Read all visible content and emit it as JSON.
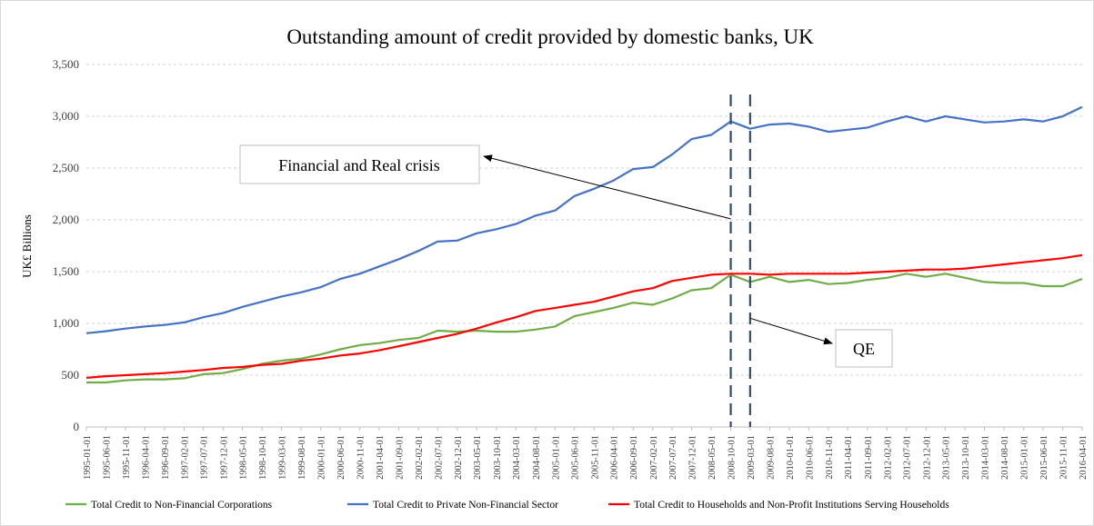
{
  "chart_data": {
    "type": "line",
    "title": "Outstanding amount of credit provided by domestic banks, UK",
    "ylabel": "UK£ Billions",
    "xlabel": "",
    "ylim": [
      0,
      3500
    ],
    "yticks": [
      0,
      500,
      1000,
      1500,
      2000,
      2500,
      3000,
      3500
    ],
    "ytick_labels": [
      "0",
      "500",
      "1,000",
      "1,500",
      "2,000",
      "2,500",
      "3,000",
      "3,500"
    ],
    "grid": "horizontal dashed",
    "legend_position": "bottom",
    "x_tick_labels": [
      "1995-01-01",
      "1995-06-01",
      "1995-11-01",
      "1996-04-01",
      "1996-09-01",
      "1997-02-01",
      "1997-07-01",
      "1997-12-01",
      "1998-05-01",
      "1998-10-01",
      "1999-03-01",
      "1999-08-01",
      "2000-01-01",
      "2000-06-01",
      "2000-11-01",
      "2001-04-01",
      "2001-09-01",
      "2002-02-01",
      "2002-07-01",
      "2002-12-01",
      "2003-05-01",
      "2003-10-01",
      "2004-03-01",
      "2004-08-01",
      "2005-01-01",
      "2005-06-01",
      "2005-11-01",
      "2006-04-01",
      "2006-09-01",
      "2007-02-01",
      "2007-07-01",
      "2007-12-01",
      "2008-05-01",
      "2008-10-01",
      "2009-03-01",
      "2009-08-01",
      "2010-01-01",
      "2010-06-01",
      "2010-11-01",
      "2011-04-01",
      "2011-09-01",
      "2012-02-01",
      "2012-07-01",
      "2012-12-01",
      "2013-05-01",
      "2013-10-01",
      "2014-03-01",
      "2014-08-01",
      "2015-01-01",
      "2015-06-01",
      "2015-11-01",
      "2016-04-01"
    ],
    "x_start": "1995-01-01",
    "x_end": "2016-04-01",
    "series": [
      {
        "name": "Total Credit to Non-Financial Corporations",
        "color": "#70ad47",
        "x": [
          "1995-01-01",
          "1995-06-01",
          "1995-11-01",
          "1996-04-01",
          "1996-09-01",
          "1997-02-01",
          "1997-07-01",
          "1997-12-01",
          "1998-05-01",
          "1998-10-01",
          "1999-03-01",
          "1999-08-01",
          "2000-01-01",
          "2000-06-01",
          "2000-11-01",
          "2001-04-01",
          "2001-09-01",
          "2002-02-01",
          "2002-07-01",
          "2002-12-01",
          "2003-05-01",
          "2003-10-01",
          "2004-03-01",
          "2004-08-01",
          "2005-01-01",
          "2005-06-01",
          "2005-11-01",
          "2006-04-01",
          "2006-09-01",
          "2007-02-01",
          "2007-07-01",
          "2007-12-01",
          "2008-05-01",
          "2008-10-01",
          "2009-03-01",
          "2009-08-01",
          "2010-01-01",
          "2010-06-01",
          "2010-11-01",
          "2011-04-01",
          "2011-09-01",
          "2012-02-01",
          "2012-07-01",
          "2012-12-01",
          "2013-05-01",
          "2013-10-01",
          "2014-03-01",
          "2014-08-01",
          "2015-01-01",
          "2015-06-01",
          "2015-11-01",
          "2016-04-01"
        ],
        "values": [
          430,
          430,
          450,
          460,
          460,
          470,
          510,
          520,
          560,
          610,
          640,
          660,
          700,
          750,
          790,
          810,
          840,
          860,
          930,
          920,
          930,
          920,
          920,
          940,
          970,
          1070,
          1110,
          1150,
          1200,
          1180,
          1240,
          1320,
          1340,
          1470,
          1400,
          1450,
          1400,
          1420,
          1380,
          1390,
          1420,
          1440,
          1480,
          1450,
          1480,
          1440,
          1400,
          1390,
          1390,
          1360,
          1360,
          1430
        ]
      },
      {
        "name": "Total Credit to Private Non-Financial Sector",
        "color": "#4472c4",
        "x": [
          "1995-01-01",
          "1995-06-01",
          "1995-11-01",
          "1996-04-01",
          "1996-09-01",
          "1997-02-01",
          "1997-07-01",
          "1997-12-01",
          "1998-05-01",
          "1998-10-01",
          "1999-03-01",
          "1999-08-01",
          "2000-01-01",
          "2000-06-01",
          "2000-11-01",
          "2001-04-01",
          "2001-09-01",
          "2002-02-01",
          "2002-07-01",
          "2002-12-01",
          "2003-05-01",
          "2003-10-01",
          "2004-03-01",
          "2004-08-01",
          "2005-01-01",
          "2005-06-01",
          "2005-11-01",
          "2006-04-01",
          "2006-09-01",
          "2007-02-01",
          "2007-07-01",
          "2007-12-01",
          "2008-05-01",
          "2008-10-01",
          "2009-03-01",
          "2009-08-01",
          "2010-01-01",
          "2010-06-01",
          "2010-11-01",
          "2011-04-01",
          "2011-09-01",
          "2012-02-01",
          "2012-07-01",
          "2012-12-01",
          "2013-05-01",
          "2013-10-01",
          "2014-03-01",
          "2014-08-01",
          "2015-01-01",
          "2015-06-01",
          "2015-11-01",
          "2016-04-01"
        ],
        "values": [
          905,
          925,
          950,
          970,
          985,
          1010,
          1060,
          1100,
          1160,
          1210,
          1260,
          1300,
          1350,
          1430,
          1480,
          1550,
          1620,
          1700,
          1790,
          1800,
          1870,
          1910,
          1960,
          2040,
          2090,
          2230,
          2300,
          2380,
          2490,
          2510,
          2630,
          2780,
          2820,
          2950,
          2880,
          2920,
          2930,
          2900,
          2850,
          2870,
          2890,
          2950,
          3000,
          2950,
          3000,
          2970,
          2940,
          2950,
          2970,
          2950,
          3000,
          3090
        ]
      },
      {
        "name": "Total Credit to Households and Non-Profit Institutions Serving Households",
        "color": "#ff0000",
        "x": [
          "1995-01-01",
          "1995-06-01",
          "1995-11-01",
          "1996-04-01",
          "1996-09-01",
          "1997-02-01",
          "1997-07-01",
          "1997-12-01",
          "1998-05-01",
          "1998-10-01",
          "1999-03-01",
          "1999-08-01",
          "2000-01-01",
          "2000-06-01",
          "2000-11-01",
          "2001-04-01",
          "2001-09-01",
          "2002-02-01",
          "2002-07-01",
          "2002-12-01",
          "2003-05-01",
          "2003-10-01",
          "2004-03-01",
          "2004-08-01",
          "2005-01-01",
          "2005-06-01",
          "2005-11-01",
          "2006-04-01",
          "2006-09-01",
          "2007-02-01",
          "2007-07-01",
          "2007-12-01",
          "2008-05-01",
          "2008-10-01",
          "2009-03-01",
          "2009-08-01",
          "2010-01-01",
          "2010-06-01",
          "2010-11-01",
          "2011-04-01",
          "2011-09-01",
          "2012-02-01",
          "2012-07-01",
          "2012-12-01",
          "2013-05-01",
          "2013-10-01",
          "2014-03-01",
          "2014-08-01",
          "2015-01-01",
          "2015-06-01",
          "2015-11-01",
          "2016-04-01"
        ],
        "values": [
          475,
          490,
          500,
          510,
          520,
          535,
          550,
          570,
          580,
          600,
          610,
          640,
          660,
          690,
          710,
          740,
          780,
          820,
          860,
          900,
          950,
          1010,
          1060,
          1120,
          1150,
          1180,
          1210,
          1260,
          1310,
          1340,
          1410,
          1440,
          1470,
          1480,
          1480,
          1470,
          1480,
          1480,
          1480,
          1480,
          1490,
          1500,
          1510,
          1520,
          1520,
          1530,
          1550,
          1570,
          1590,
          1610,
          1630,
          1660
        ]
      }
    ],
    "vertical_markers": [
      "2008-10-01",
      "2009-03-01"
    ],
    "annotations": [
      {
        "text": "Financial and Real crisis"
      },
      {
        "text": "QE"
      }
    ]
  }
}
